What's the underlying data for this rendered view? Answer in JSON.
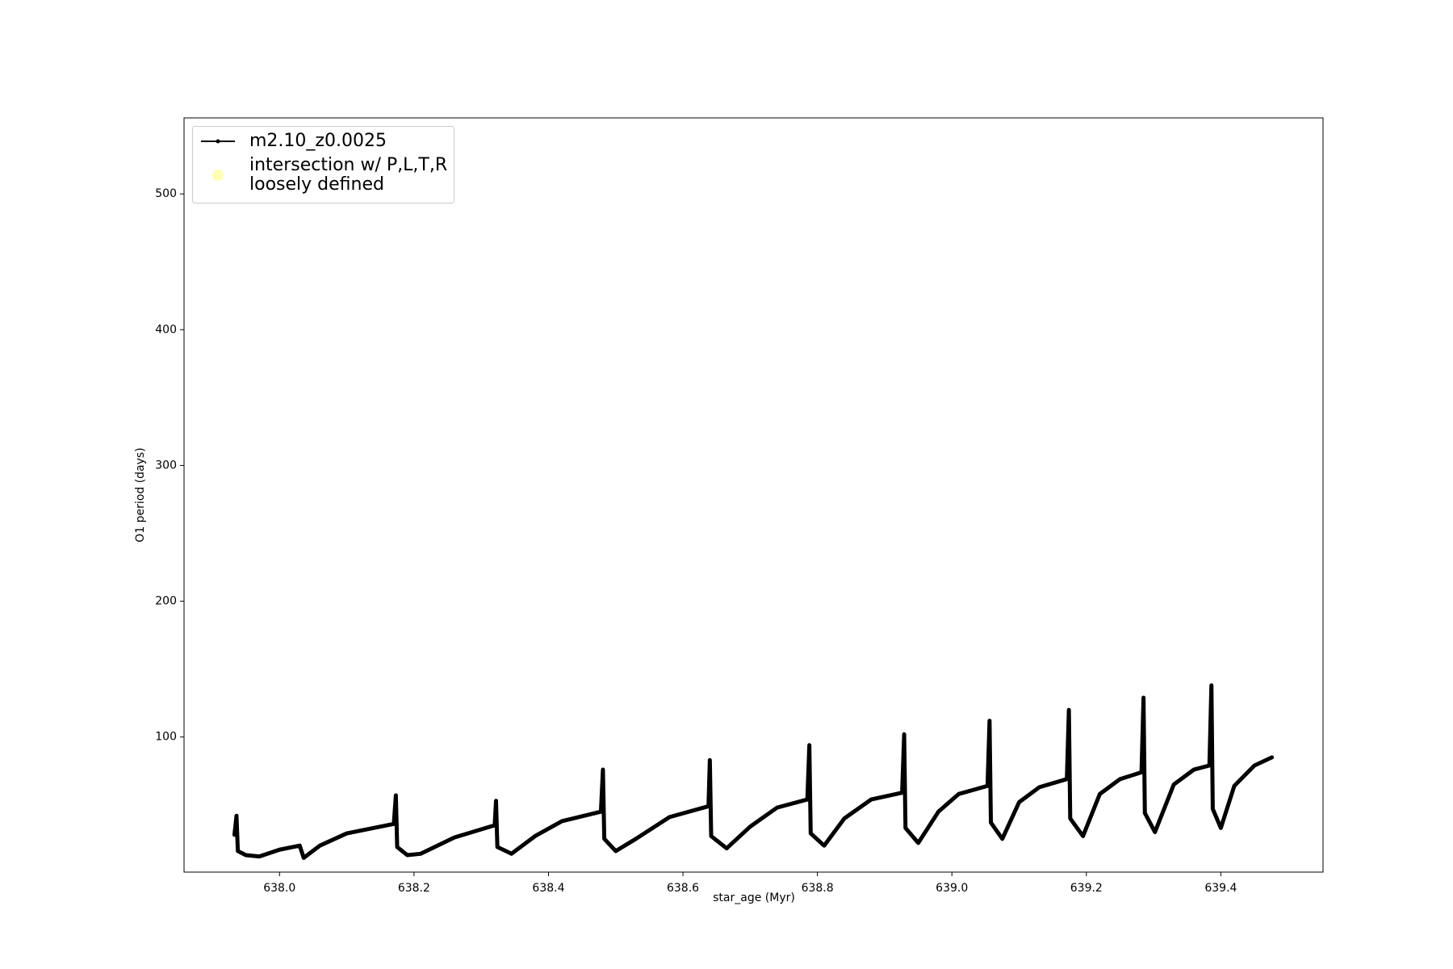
{
  "chart_data": {
    "type": "line",
    "xlabel": "star_age (Myr)",
    "ylabel": "O1 period (days)",
    "xlim": [
      637.858,
      639.552
    ],
    "ylim": [
      0.5,
      556
    ],
    "xticks": [
      {
        "value": 638,
        "label": "638.0"
      },
      638.2,
      638.4,
      638.6,
      638.8,
      {
        "value": 639,
        "label": "639.0"
      },
      639.2,
      639.4
    ],
    "yticks": [
      100,
      200,
      300,
      400,
      500
    ],
    "legend": "upper left",
    "series": [
      {
        "name": "m2.10_z0.0025",
        "type": "line",
        "color": "#000000",
        "x": [
          637.933,
          637.936,
          637.938,
          637.95,
          637.97,
          638.0,
          638.03,
          638.036,
          638.06,
          638.1,
          638.17,
          638.173,
          638.175,
          638.19,
          638.21,
          638.26,
          638.32,
          638.322,
          638.324,
          638.345,
          638.38,
          638.42,
          638.478,
          638.481,
          638.483,
          638.5,
          638.53,
          638.58,
          638.638,
          638.64,
          638.642,
          638.665,
          638.7,
          638.74,
          638.785,
          638.788,
          638.79,
          638.81,
          638.84,
          638.88,
          638.926,
          638.929,
          638.931,
          638.95,
          638.98,
          639.01,
          639.053,
          639.056,
          639.058,
          639.075,
          639.1,
          639.13,
          639.171,
          639.174,
          639.176,
          639.195,
          639.22,
          639.25,
          639.282,
          639.285,
          639.287,
          639.302,
          639.33,
          639.36,
          639.383,
          639.386,
          639.388,
          639.4,
          639.42,
          639.45,
          639.476
        ],
        "values": [
          28,
          42,
          16,
          13,
          12,
          17,
          20,
          11,
          20,
          29,
          36,
          57,
          19,
          13,
          14,
          26,
          35,
          53,
          19,
          14,
          27,
          38,
          45,
          76,
          25,
          16,
          25,
          41,
          49,
          83,
          27,
          18,
          34,
          48,
          54,
          94,
          29,
          20,
          40,
          54,
          59,
          102,
          33,
          22,
          45,
          58,
          64,
          112,
          37,
          25,
          52,
          63,
          69,
          120,
          40,
          27,
          58,
          69,
          74,
          129,
          44,
          30,
          65,
          76,
          79,
          138,
          47,
          33,
          64,
          79,
          85
        ]
      },
      {
        "name": "intersection w/ P,L,T,R\nloosely defined",
        "type": "scatter",
        "color": "#ffffb3",
        "x": [],
        "values": []
      }
    ]
  }
}
